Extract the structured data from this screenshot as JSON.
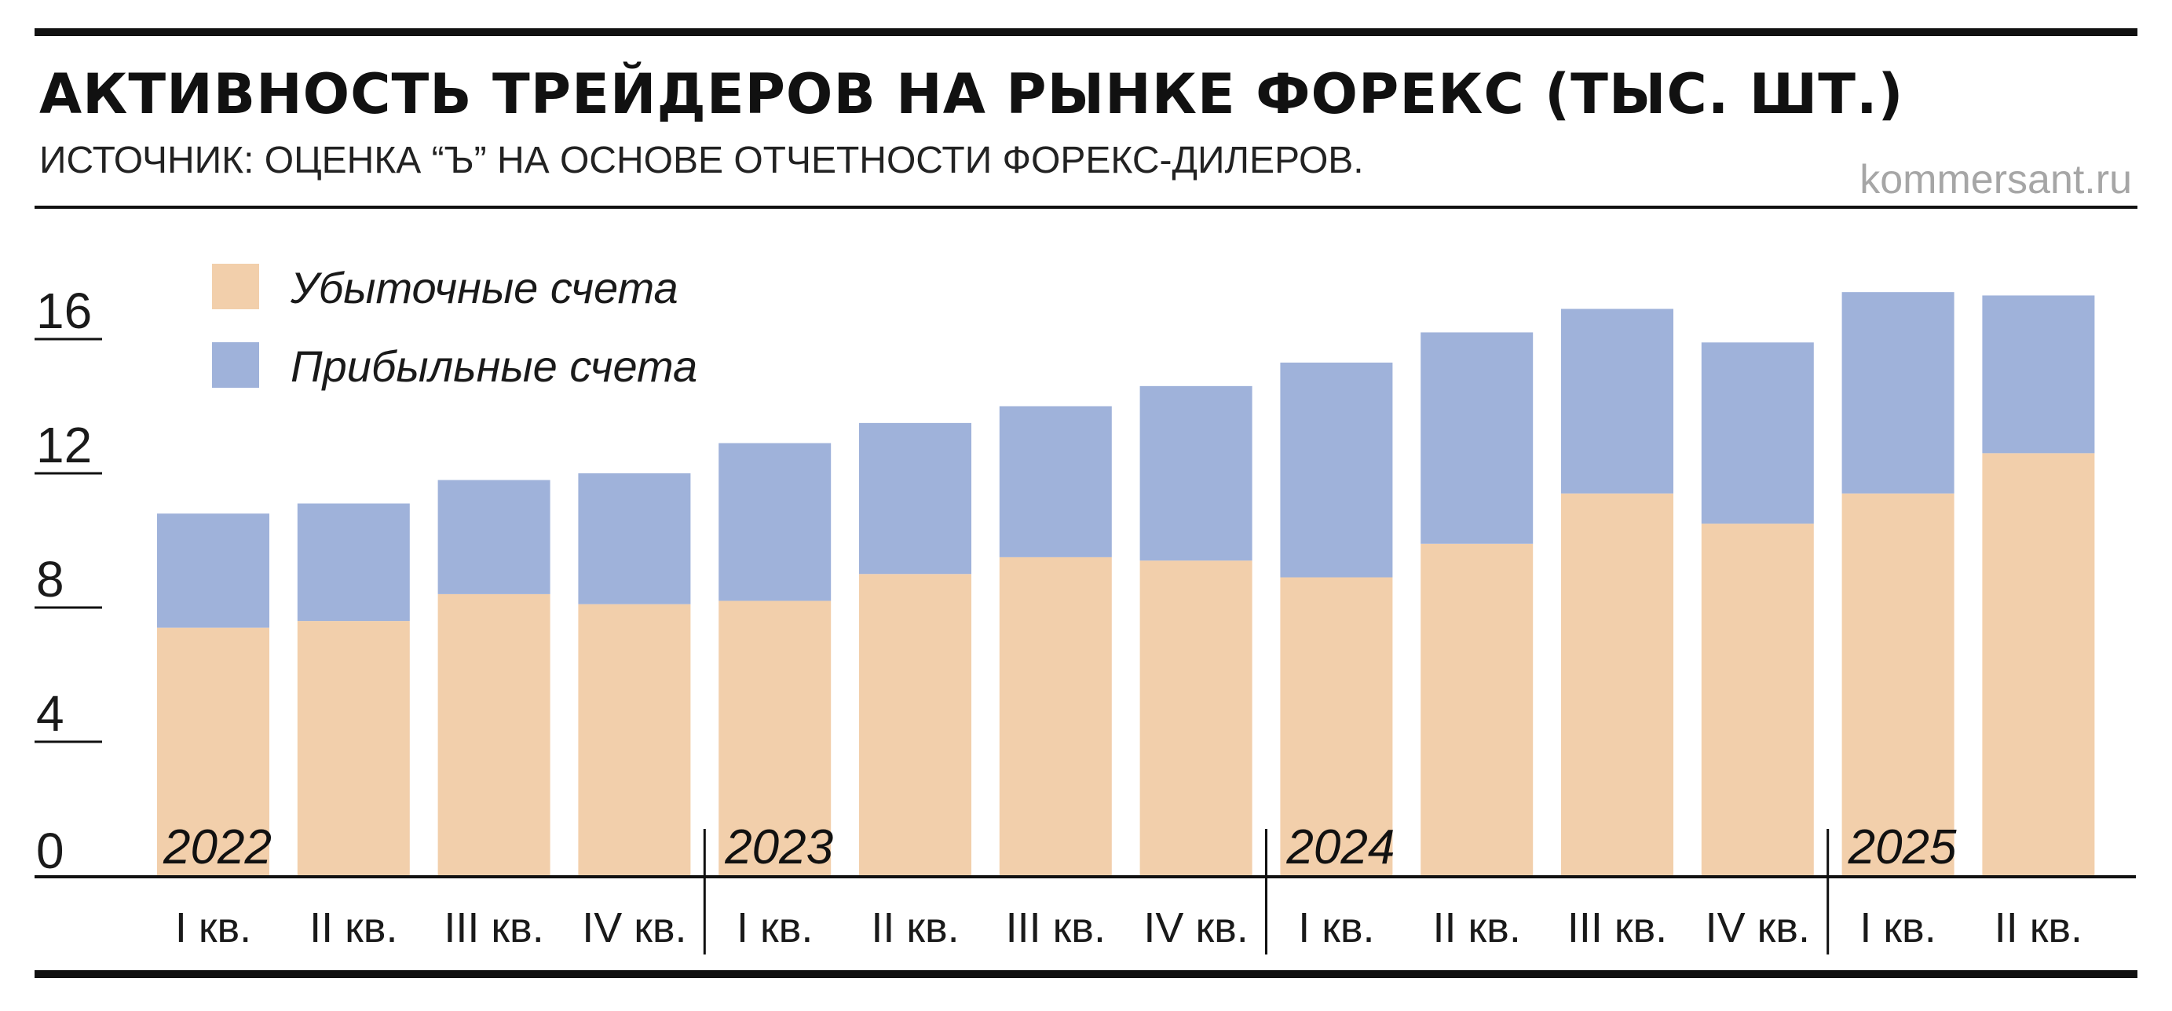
{
  "header": {
    "title": "АКТИВНОСТЬ ТРЕЙДЕРОВ НА РЫНКЕ ФОРЕКС (ТЫС. ШТ.)",
    "subtitle": "ИСТОЧНИК: ОЦЕНКА “Ъ” НА ОСНОВЕ ОТЧЕТНОСТИ ФОРЕКС-ДИЛЕРОВ.",
    "credit": "kommersant.ru"
  },
  "colors": {
    "loss": "#f2cfab",
    "profit": "#9fb2da",
    "rule": "#111111",
    "credit": "#a6a6a6"
  },
  "chart_data": {
    "type": "bar",
    "stacked": true,
    "title": "АКТИВНОСТЬ ТРЕЙДЕРОВ НА РЫНКЕ ФОРЕКС (ТЫС. ШТ.)",
    "ylim": [
      0,
      18
    ],
    "yticks": [
      "0",
      "4",
      "8",
      "12",
      "16"
    ],
    "grid": false,
    "legend_position": "top-left",
    "categories": [
      "I кв.",
      "II кв.",
      "III кв.",
      "IV кв.",
      "I кв.",
      "II кв.",
      "III кв.",
      "IV кв.",
      "I кв.",
      "II кв.",
      "III кв.",
      "IV кв.",
      "I кв.",
      "II кв."
    ],
    "year_groups": [
      {
        "label": "2022",
        "start": 0
      },
      {
        "label": "2023",
        "start": 4
      },
      {
        "label": "2024",
        "start": 8
      },
      {
        "label": "2025",
        "start": 12
      }
    ],
    "series": [
      {
        "name": "Убыточные счета",
        "values": [
          7.4,
          7.6,
          8.4,
          8.1,
          8.2,
          9.0,
          9.5,
          9.4,
          8.9,
          9.9,
          11.4,
          10.5,
          11.4,
          12.6
        ]
      },
      {
        "name": "Прибыльные счета",
        "values": [
          3.4,
          3.5,
          3.4,
          3.9,
          4.7,
          4.5,
          4.5,
          5.2,
          6.4,
          6.3,
          5.5,
          5.4,
          6.0,
          4.7
        ]
      }
    ]
  }
}
